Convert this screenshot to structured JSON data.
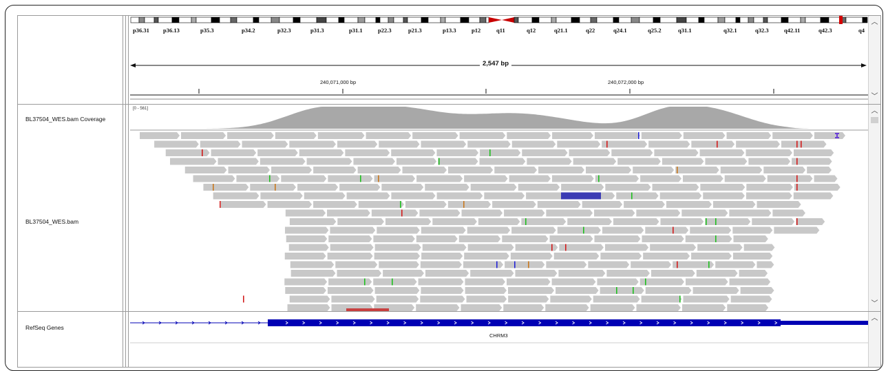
{
  "ideogram": {
    "bands": [
      "p36.31",
      "p36.13",
      "p35.3",
      "p34.2",
      "p32.3",
      "p31.3",
      "p31.1",
      "p22.3",
      "p21.3",
      "p13.3",
      "p12",
      "q11",
      "q12",
      "q21.1",
      "q22",
      "q24.1",
      "q25.2",
      "q31.1",
      "q32.1",
      "q32.3",
      "q42.11",
      "q42.3",
      "q4"
    ]
  },
  "ruler": {
    "span_label": "2,547 bp",
    "ticks": [
      "240,071,000 bp",
      "240,072,000 bp"
    ]
  },
  "tracks": {
    "coverage_name": "BL37504_WES.bam Coverage",
    "coverage_range": "[0 - 561]",
    "alignment_name": "BL37504_WES.bam",
    "genes_name": "RefSeq Genes",
    "gene_label": "CHRM3"
  },
  "colors": {
    "read": "#c8c8c8",
    "coverage": "#a8a8a8",
    "gene": "#0000b4",
    "mismatch_red": "#d21c1c",
    "mismatch_green": "#1fbf1f",
    "mismatch_blue": "#2323d6",
    "mismatch_orange": "#c8781e",
    "centromere": "#c80000"
  },
  "icons": {
    "scroll_up": "chevron-up-icon",
    "scroll_down": "chevron-down-icon"
  }
}
